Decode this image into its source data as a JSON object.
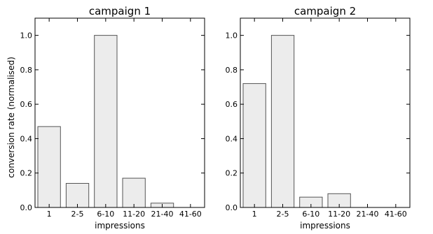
{
  "figure": {
    "ylabel": "conversion rate (normalised)"
  },
  "colors": {
    "bar_fill": "#ececec",
    "bar_stroke": "#555555",
    "axis": "#000000"
  },
  "chart_data": [
    {
      "type": "bar",
      "title": "campaign 1",
      "xlabel": "impressions",
      "ylabel": "conversion rate (normalised)",
      "categories": [
        "1",
        "2-5",
        "6-10",
        "11-20",
        "21-40",
        "41-60"
      ],
      "values": [
        0.47,
        0.14,
        1.0,
        0.17,
        0.025,
        0
      ],
      "ylim": [
        0,
        1.1
      ],
      "yticks": [
        "0.0",
        "0.2",
        "0.4",
        "0.6",
        "0.8",
        "1.0"
      ],
      "grid": false
    },
    {
      "type": "bar",
      "title": "campaign 2",
      "xlabel": "impressions",
      "ylabel": "",
      "categories": [
        "1",
        "2-5",
        "6-10",
        "11-20",
        "21-40",
        "41-60"
      ],
      "values": [
        0.72,
        1.0,
        0.06,
        0.08,
        0,
        0
      ],
      "ylim": [
        0,
        1.1
      ],
      "yticks": [
        "0.0",
        "0.2",
        "0.4",
        "0.6",
        "0.8",
        "1.0"
      ],
      "grid": false
    }
  ]
}
